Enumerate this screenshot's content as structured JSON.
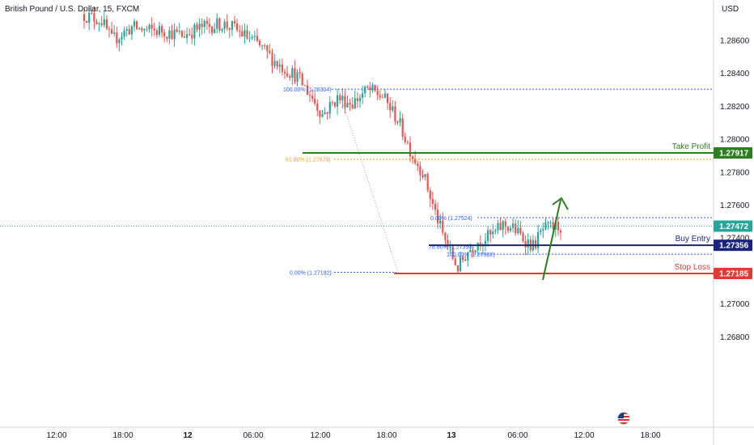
{
  "symbol_title": "British Pound / U.S. Dollar, 15, FXCM",
  "currency": "USD",
  "price_axis": {
    "ticks": [
      "1.28600",
      "1.28400",
      "1.28200",
      "1.28000",
      "1.27800",
      "1.27600",
      "1.27400",
      "1.27000",
      "1.26800"
    ],
    "tick_values": [
      1.286,
      1.284,
      1.282,
      1.28,
      1.278,
      1.276,
      1.274,
      1.27,
      1.268
    ]
  },
  "time_axis": {
    "labels": [
      "12:00",
      "18:00",
      "12",
      "06:00",
      "12:00",
      "18:00",
      "13",
      "06:00",
      "12:00",
      "18:00"
    ],
    "bold": [
      false,
      false,
      true,
      false,
      false,
      false,
      true,
      false,
      false,
      false
    ]
  },
  "levels": {
    "take_profit": {
      "label": "Take Profit",
      "price": 1.27917,
      "tag": "1.27917",
      "color": "#2e7d1f"
    },
    "buy_entry": {
      "label": "Buy Entry",
      "price": 1.27356,
      "tag": "1.27356",
      "color": "#1a237e"
    },
    "stop_loss": {
      "label": "Stop Loss",
      "price": 1.27185,
      "tag": "1.27185",
      "color": "#e53935"
    },
    "current": {
      "price": 1.27472,
      "tag": "1.27472",
      "color": "#26a69a"
    }
  },
  "fib_labels": {
    "a": "100.00% (1.28304)",
    "b": "61.80% (1.27879)",
    "c": "0.00% (1.27192)",
    "d": "0.00% (1.27524)",
    "e": "78.60% (1.27350)",
    "f": "100.00% (1.27302)"
  },
  "colors": {
    "bull": "#26a69a",
    "bear": "#ef5350",
    "fib_blue": "#2962ff",
    "fib_orange": "#f0a30a",
    "arrow": "#2e7d1f"
  },
  "icons": [
    "us-flag-icon",
    "up-arrow-icon"
  ],
  "chart_data": {
    "type": "candlestick",
    "title": "British Pound / U.S. Dollar, 15, FXCM",
    "ylim": [
      1.2665,
      1.2883
    ],
    "anchors": [
      [
        0,
        1.2876
      ],
      [
        8,
        1.2872
      ],
      [
        12,
        1.286
      ],
      [
        20,
        1.2868
      ],
      [
        26,
        1.2866
      ],
      [
        32,
        1.2866
      ],
      [
        40,
        1.2863
      ],
      [
        48,
        1.2868
      ],
      [
        56,
        1.287
      ],
      [
        60,
        1.2868
      ],
      [
        70,
        1.2858
      ],
      [
        78,
        1.2846
      ],
      [
        86,
        1.2838
      ],
      [
        92,
        1.2825
      ],
      [
        96,
        1.2815
      ],
      [
        99,
        1.282
      ],
      [
        102,
        1.2825
      ],
      [
        108,
        1.2822
      ],
      [
        114,
        1.283
      ],
      [
        120,
        1.2826
      ],
      [
        126,
        1.2812
      ],
      [
        132,
        1.279
      ],
      [
        136,
        1.278
      ],
      [
        140,
        1.276
      ],
      [
        144,
        1.2742
      ],
      [
        148,
        1.2728
      ],
      [
        150,
        1.2722
      ],
      [
        154,
        1.2732
      ],
      [
        158,
        1.2738
      ],
      [
        164,
        1.2742
      ],
      [
        168,
        1.2748
      ],
      [
        172,
        1.2746
      ],
      [
        176,
        1.274
      ],
      [
        180,
        1.2735
      ],
      [
        184,
        1.2745
      ],
      [
        190,
        1.2747
      ]
    ]
  }
}
